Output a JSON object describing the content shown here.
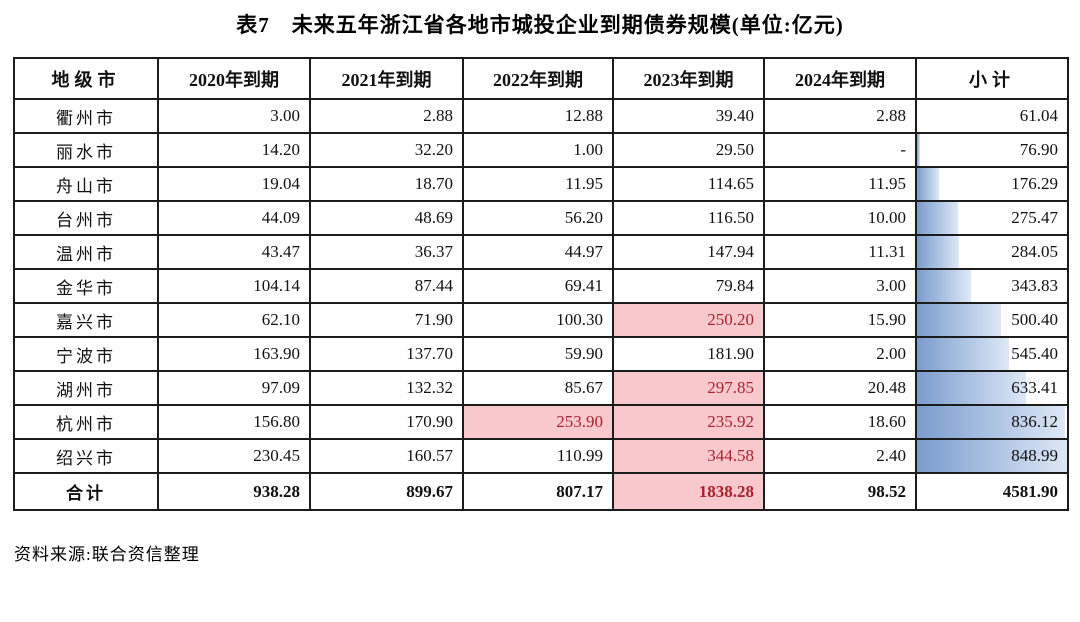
{
  "title": "表7　未来五年浙江省各地市城投企业到期债券规模(单位:亿元)",
  "source": "资料来源:联合资信整理",
  "colors": {
    "highlight_bg": "#f9c8cd",
    "highlight_text": "#a6242f",
    "bar_gradient_start": "#7b9cce",
    "bar_gradient_end": "#dde8f6",
    "border": "#1c1c1c"
  },
  "chart_data": {
    "type": "table",
    "title": "表7 未来五年浙江省各地市城投企业到期债券规模(单位:亿元)",
    "headers": [
      "地级市",
      "2020年到期",
      "2021年到期",
      "2022年到期",
      "2023年到期",
      "2024年到期",
      "小计"
    ],
    "rows": [
      {
        "city": "衢州市",
        "values": [
          "3.00",
          "2.88",
          "12.88",
          "39.40",
          "2.88"
        ],
        "subtotal": "61.04",
        "bar_pct": 0,
        "highlight": []
      },
      {
        "city": "丽水市",
        "values": [
          "14.20",
          "32.20",
          "1.00",
          "29.50",
          "-"
        ],
        "subtotal": "76.90",
        "bar_pct": 2.0,
        "highlight": []
      },
      {
        "city": "舟山市",
        "values": [
          "19.04",
          "18.70",
          "11.95",
          "114.65",
          "11.95"
        ],
        "subtotal": "176.29",
        "bar_pct": 14.6,
        "highlight": []
      },
      {
        "city": "台州市",
        "values": [
          "44.09",
          "48.69",
          "56.20",
          "116.50",
          "10.00"
        ],
        "subtotal": "275.47",
        "bar_pct": 27.2,
        "highlight": []
      },
      {
        "city": "温州市",
        "values": [
          "43.47",
          "36.37",
          "44.97",
          "147.94",
          "11.31"
        ],
        "subtotal": "284.05",
        "bar_pct": 28.3,
        "highlight": []
      },
      {
        "city": "金华市",
        "values": [
          "104.14",
          "87.44",
          "69.41",
          "79.84",
          "3.00"
        ],
        "subtotal": "343.83",
        "bar_pct": 35.9,
        "highlight": []
      },
      {
        "city": "嘉兴市",
        "values": [
          "62.10",
          "71.90",
          "100.30",
          "250.20",
          "15.90"
        ],
        "subtotal": "500.40",
        "bar_pct": 55.8,
        "highlight": [
          3
        ]
      },
      {
        "city": "宁波市",
        "values": [
          "163.90",
          "137.70",
          "59.90",
          "181.90",
          "2.00"
        ],
        "subtotal": "545.40",
        "bar_pct": 61.5,
        "highlight": []
      },
      {
        "city": "湖州市",
        "values": [
          "97.09",
          "132.32",
          "85.67",
          "297.85",
          "20.48"
        ],
        "subtotal": "633.41",
        "bar_pct": 72.6,
        "highlight": [
          3
        ]
      },
      {
        "city": "杭州市",
        "values": [
          "156.80",
          "170.90",
          "253.90",
          "235.92",
          "18.60"
        ],
        "subtotal": "836.12",
        "bar_pct": 98.4,
        "highlight": [
          2,
          3
        ]
      },
      {
        "city": "绍兴市",
        "values": [
          "230.45",
          "160.57",
          "110.99",
          "344.58",
          "2.40"
        ],
        "subtotal": "848.99",
        "bar_pct": 100,
        "highlight": [
          3
        ]
      }
    ],
    "total_row": {
      "city": "合计",
      "values": [
        "938.28",
        "899.67",
        "807.17",
        "1838.28",
        "98.52"
      ],
      "subtotal": "4581.90",
      "bar_pct": null,
      "highlight": [
        3
      ]
    },
    "bar_scale": {
      "min": 61.04,
      "max": 848.99
    }
  }
}
